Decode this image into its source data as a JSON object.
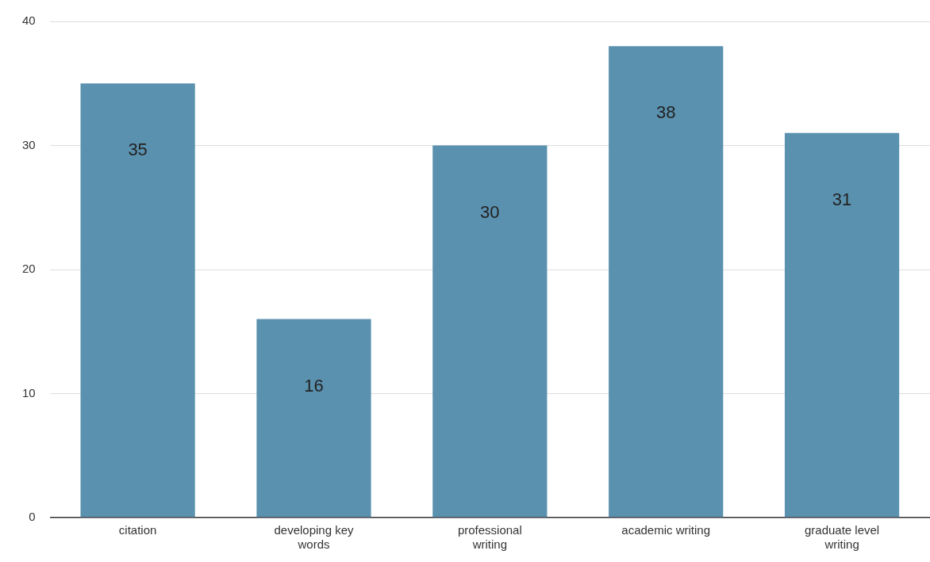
{
  "chart_data": {
    "type": "bar",
    "categories": [
      "citation",
      "developing key words",
      "professional writing",
      "academic writing",
      "graduate level writing"
    ],
    "values": [
      35,
      16,
      30,
      38,
      31
    ],
    "color": "#5a91af",
    "ylim": [
      0,
      40
    ],
    "yticks": [
      0,
      10,
      20,
      30,
      40
    ],
    "grid": "y",
    "data_labels": true,
    "legend": false
  }
}
